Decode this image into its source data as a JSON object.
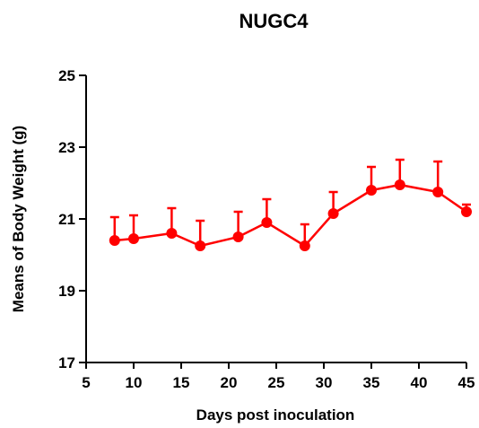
{
  "chart_data": {
    "type": "line",
    "title": "NUGC4",
    "xlabel": "Days post inoculation",
    "ylabel": "Means of Body Weight (g)",
    "xlim": [
      5,
      45
    ],
    "ylim": [
      17,
      25
    ],
    "x_ticks": [
      5,
      10,
      15,
      20,
      25,
      30,
      35,
      40,
      45
    ],
    "y_ticks": [
      17,
      19,
      21,
      23,
      25
    ],
    "grid": false,
    "legend": "none",
    "series": [
      {
        "color": "#ff0000",
        "x": [
          8,
          10,
          14,
          17,
          21,
          24,
          28,
          31,
          35,
          38,
          42,
          45
        ],
        "y": [
          20.4,
          20.45,
          20.6,
          20.25,
          20.5,
          20.9,
          20.25,
          21.15,
          21.8,
          21.95,
          21.75,
          21.2
        ],
        "error_upper": [
          0.65,
          0.65,
          0.7,
          0.7,
          0.7,
          0.65,
          0.6,
          0.6,
          0.65,
          0.7,
          0.85,
          0.2
        ]
      }
    ]
  }
}
